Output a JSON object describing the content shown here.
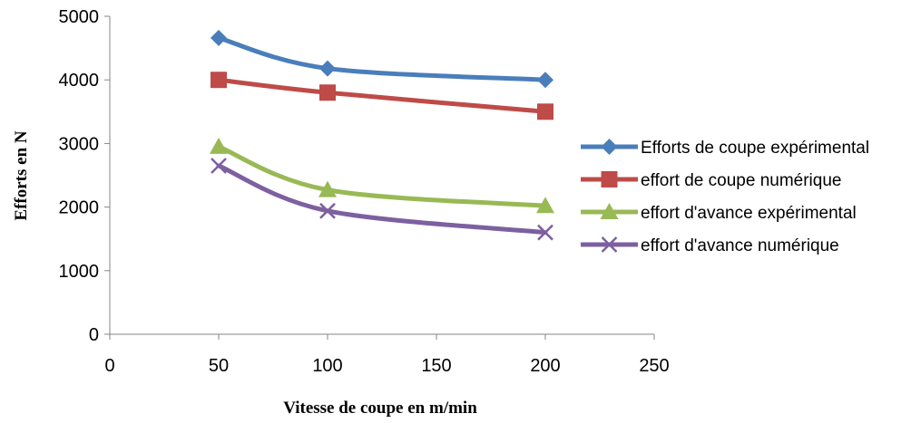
{
  "chart_data": {
    "type": "line",
    "title": "",
    "xlabel": "Vitesse  de  coupe en m/min",
    "ylabel": "Efforts  en N",
    "xlim": [
      0,
      250
    ],
    "ylim": [
      0,
      5000
    ],
    "xticks": [
      0,
      50,
      100,
      150,
      200,
      250
    ],
    "yticks": [
      0,
      1000,
      2000,
      3000,
      4000,
      5000
    ],
    "grid": false,
    "legend_position": "right",
    "x": [
      50,
      100,
      200
    ],
    "series": [
      {
        "name": "Efforts de coupe expérimental",
        "values": [
          4660,
          4180,
          4000
        ],
        "color": "#4a7ebb",
        "marker": "diamond"
      },
      {
        "name": "effort de coupe numérique",
        "values": [
          4000,
          3800,
          3500
        ],
        "color": "#be4b48",
        "marker": "square"
      },
      {
        "name": "effort d'avance expérimental",
        "values": [
          2950,
          2270,
          2020
        ],
        "color": "#98b954",
        "marker": "triangle"
      },
      {
        "name": "effort d'avance numérique",
        "values": [
          2650,
          1940,
          1600
        ],
        "color": "#7d60a0",
        "marker": "x"
      }
    ]
  }
}
